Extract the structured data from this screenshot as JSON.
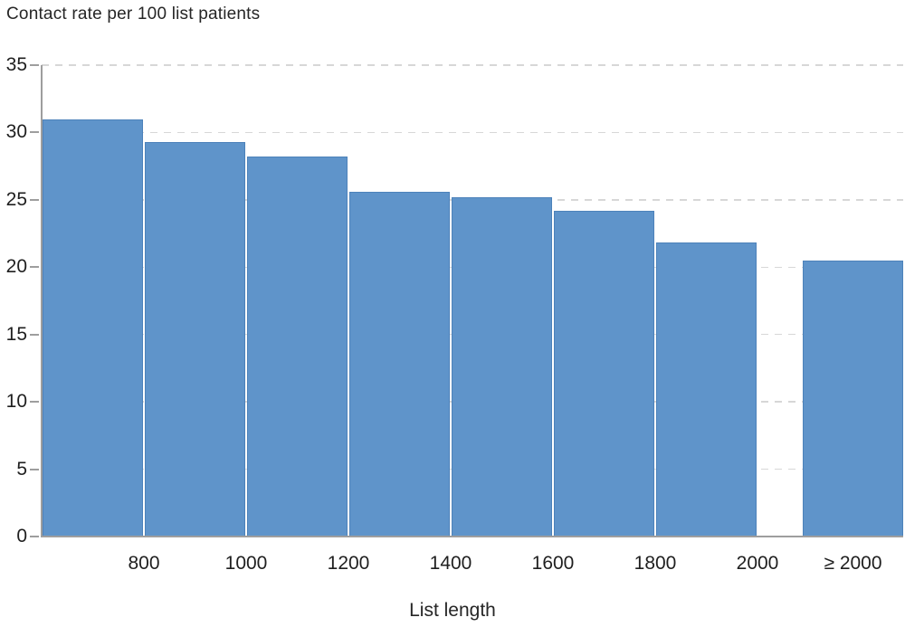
{
  "chart_data": {
    "type": "bar",
    "title": "Contact rate per 100 list patients",
    "xlabel": "List length",
    "ylabel": "Contact rate per 100 list patients",
    "ylim": [
      0,
      35
    ],
    "yticks": [
      0,
      5,
      10,
      15,
      20,
      25,
      30,
      35
    ],
    "grid": "horizontal dashed gridlines at every y tick",
    "legend": "none",
    "values": [
      31.0,
      29.3,
      28.2,
      25.6,
      25.2,
      24.2,
      21.8,
      20.5
    ],
    "edge_tick_labels": [
      "800",
      "1000",
      "1200",
      "1400",
      "1600",
      "1800",
      "2000"
    ],
    "last_bar_tick_label": "≥ 2000",
    "detached_last_bar": true,
    "colors": {
      "bar_fill": "#5F94CA",
      "bar_border": "#4D82BA",
      "gridline": "#d7d7d7",
      "axis": "#9e9e9e",
      "text": "#1f1f1f"
    }
  }
}
